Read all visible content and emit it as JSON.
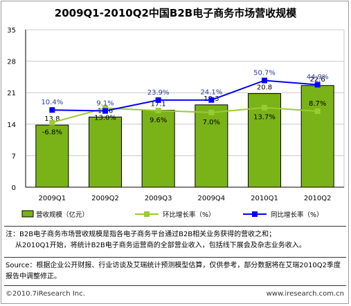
{
  "chart_data": {
    "type": "bar",
    "title": "2009Q1-2010Q2中国B2B电子商务市场营收规模",
    "categories": [
      "2009Q1",
      "2009Q2",
      "2009Q3",
      "2009Q4",
      "2010Q1",
      "2010Q2"
    ],
    "ylim": [
      0,
      35
    ],
    "yticks": [
      0,
      7,
      14,
      21,
      28,
      35
    ],
    "bar_series": {
      "name": "营收规模（亿元）",
      "color": "#7ab317",
      "values": [
        13.8,
        15.6,
        17.1,
        18.3,
        20.8,
        22.6
      ],
      "labels": [
        "13.8",
        "15.6",
        "17.1",
        "18.3",
        "20.8",
        "22.6"
      ]
    },
    "line_series": [
      {
        "name": "环比增长率（%）",
        "color": "#99cc33",
        "values": [
          -6.8,
          13.0,
          9.6,
          7.0,
          13.7,
          8.7
        ],
        "labels": [
          "-6.8%",
          "13.0%",
          "9.6%",
          "7.0%",
          "13.7%",
          "8.7%"
        ],
        "label_color": "#000000",
        "label_pos": [
          "below",
          "below",
          "below",
          "below",
          "below",
          "above"
        ]
      },
      {
        "name": "同比增长率（%）",
        "color": "#0000ff",
        "values": [
          10.4,
          9.1,
          23.9,
          24.1,
          50.7,
          44.9
        ],
        "labels": [
          "10.4%",
          "9.1%",
          "23.9%",
          "24.1%",
          "50.7%",
          "44.9%"
        ],
        "label_color": "#2a3c9c",
        "label_pos": [
          "above",
          "above",
          "above",
          "above",
          "above",
          "above"
        ]
      }
    ],
    "legend_position": "bottom",
    "grid": true
  },
  "notes": {
    "line1": "注：B2B电子商务市场营收规模是指各电子商务平台通过B2B相关业务获得的营收之和；",
    "line2": "从2010Q1开始，将统计B2B电子商务运营商的全部营业收入，包括线下展会及杂志业务收入。"
  },
  "source": "Source：根据企业公开财报、行业访谈及艾瑞统计预测模型估算，仅供参考，部分数据将在艾瑞2010Q2季度报告中调整修正。",
  "footer": {
    "copyright": "©2010.7iResearch Inc.",
    "url": "www.iresearch.com.cn"
  }
}
